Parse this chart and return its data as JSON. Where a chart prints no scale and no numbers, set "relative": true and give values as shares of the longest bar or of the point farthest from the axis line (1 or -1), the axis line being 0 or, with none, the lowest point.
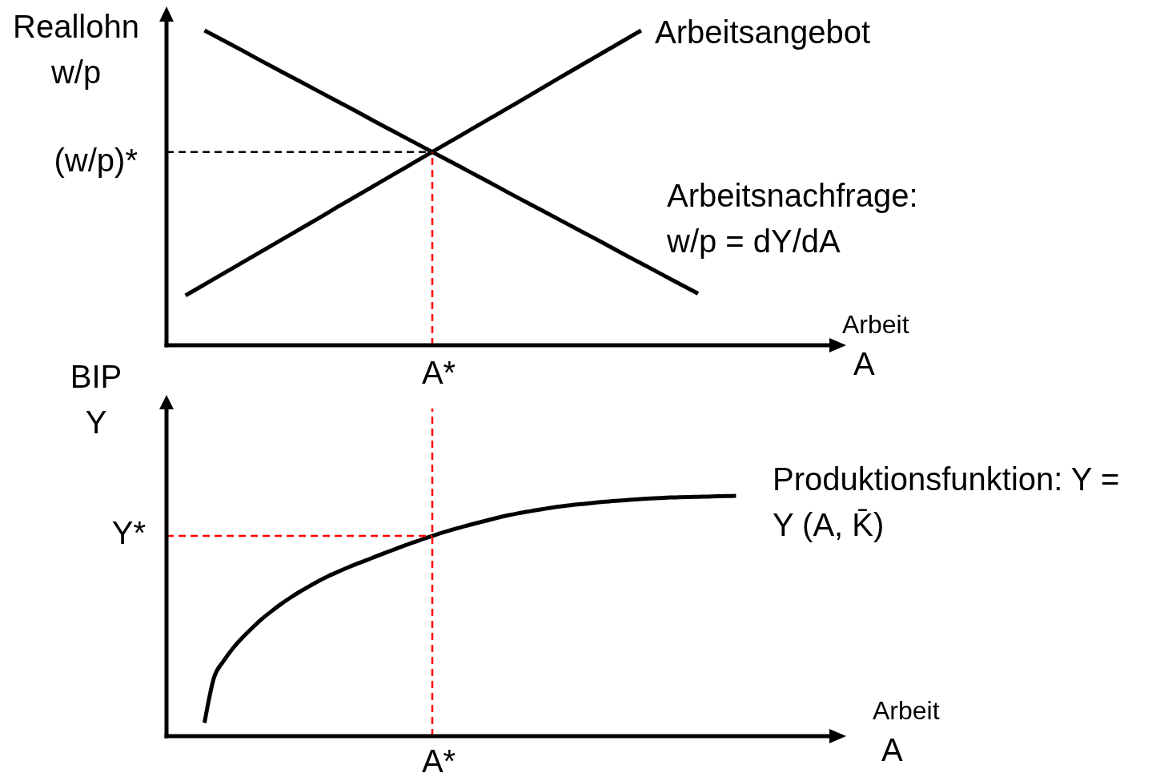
{
  "chart_data": [
    {
      "type": "line",
      "relative": true,
      "ylabel": "Reallohn w/p",
      "xlabel": "Arbeit A",
      "categories": [
        null,
        null,
        null,
        null,
        null,
        null,
        null,
        null,
        null,
        null,
        null,
        null,
        null,
        null,
        null,
        null,
        null,
        null,
        null,
        null,
        null,
        null,
        null,
        null,
        null,
        null,
        null,
        null,
        null,
        null,
        null,
        null,
        null,
        null,
        null,
        null
      ],
      "series": [
        {
          "name": "Arbeitsangebot",
          "color": "#000000",
          "values": [
            null,
            0.158,
            0.193,
            0.228,
            0.263,
            0.298,
            0.333,
            0.368,
            0.403,
            0.439,
            0.474,
            0.509,
            0.544,
            0.579,
            0.614,
            0.649,
            0.684,
            0.719,
            0.754,
            0.789,
            0.825,
            0.86,
            0.895,
            0.93,
            0.965,
            1.0,
            null,
            null,
            null,
            null,
            null,
            null,
            null,
            null,
            null,
            null
          ]
        },
        {
          "name": "Arbeitsnachfrage: w/p = dY/dA",
          "color": "#000000",
          "values": [
            null,
            null,
            1.0,
            0.968,
            0.936,
            0.903,
            0.871,
            0.839,
            0.807,
            0.775,
            0.743,
            0.71,
            0.678,
            0.646,
            0.614,
            0.582,
            0.55,
            0.518,
            0.485,
            0.453,
            0.421,
            0.389,
            0.357,
            0.325,
            0.292,
            0.26,
            0.228,
            0.196,
            0.164,
            null,
            null,
            null,
            null,
            null,
            null,
            null
          ]
        },
        {
          "color": "#000000",
          "line_style": "dashed",
          "values": [
            0.614,
            0.614,
            0.614,
            0.614,
            0.614,
            0.614,
            0.614,
            0.614,
            0.614,
            0.614,
            0.614,
            0.614,
            0.614,
            0.614,
            0.614,
            null,
            null,
            null,
            null,
            null,
            null,
            null,
            null,
            null,
            null,
            null,
            null,
            null,
            null,
            null,
            null,
            null,
            null,
            null,
            null,
            null
          ]
        }
      ],
      "annotations": [
        "(w/p)*",
        "A*"
      ]
    },
    {
      "type": "line",
      "relative": true,
      "ylabel": "BIP Y",
      "xlabel": "Arbeit A",
      "categories": [
        null,
        null,
        null,
        null,
        null,
        null,
        null,
        null,
        null,
        null,
        null,
        null,
        null,
        null,
        null,
        null,
        null,
        null,
        null,
        null,
        null,
        null,
        null,
        null,
        null,
        null,
        null,
        null,
        null,
        null,
        null,
        null,
        null,
        null,
        null,
        null,
        null,
        null,
        null,
        null,
        null,
        null,
        null,
        null,
        null,
        null,
        null,
        null,
        null,
        null,
        null,
        null,
        null,
        null,
        null,
        null,
        null,
        null,
        null,
        null,
        null,
        null,
        null,
        null,
        null,
        null,
        null,
        null,
        null,
        null,
        null
      ],
      "series": [
        {
          "name": "Produktionsfunktion: Y = Y (A, K̄)",
          "color": "#000000",
          "values": [
            null,
            null,
            null,
            null,
            0.055,
            0.243,
            0.312,
            0.366,
            0.41,
            0.449,
            0.486,
            0.518,
            0.548,
            0.575,
            0.6,
            0.623,
            0.645,
            0.665,
            0.683,
            0.7,
            0.716,
            0.731,
            0.747,
            0.762,
            0.777,
            0.792,
            0.806,
            0.82,
            0.833,
            0.846,
            0.858,
            0.869,
            0.88,
            0.89,
            0.9,
            0.91,
            0.919,
            0.927,
            0.934,
            0.941,
            0.947,
            0.953,
            0.958,
            0.963,
            0.967,
            0.971,
            0.975,
            0.978,
            0.981,
            0.984,
            0.987,
            0.989,
            0.991,
            0.993,
            0.994,
            0.995,
            0.996,
            0.997,
            0.998,
            0.999,
            1.0,
            null,
            null,
            null,
            null,
            null,
            null,
            null,
            null,
            null,
            null
          ]
        },
        {
          "color": "#ff0000",
          "line_style": "dashed",
          "values": [
            0.833,
            0.833,
            0.833,
            0.833,
            0.833,
            0.833,
            0.833,
            0.833,
            0.833,
            0.833,
            0.833,
            0.833,
            0.833,
            0.833,
            0.833,
            0.833,
            0.833,
            0.833,
            0.833,
            0.833,
            0.833,
            0.833,
            0.833,
            0.833,
            0.833,
            0.833,
            0.833,
            0.833,
            0.833,
            null,
            null,
            null,
            null,
            null,
            null,
            null,
            null,
            null,
            null,
            null,
            null,
            null,
            null,
            null,
            null,
            null,
            null,
            null,
            null,
            null,
            null,
            null,
            null,
            null,
            null,
            null,
            null,
            null,
            null,
            null,
            null,
            null,
            null,
            null,
            null,
            null,
            null,
            null,
            null,
            null,
            null
          ]
        }
      ],
      "annotations": [
        "Y*",
        "A*"
      ]
    }
  ]
}
